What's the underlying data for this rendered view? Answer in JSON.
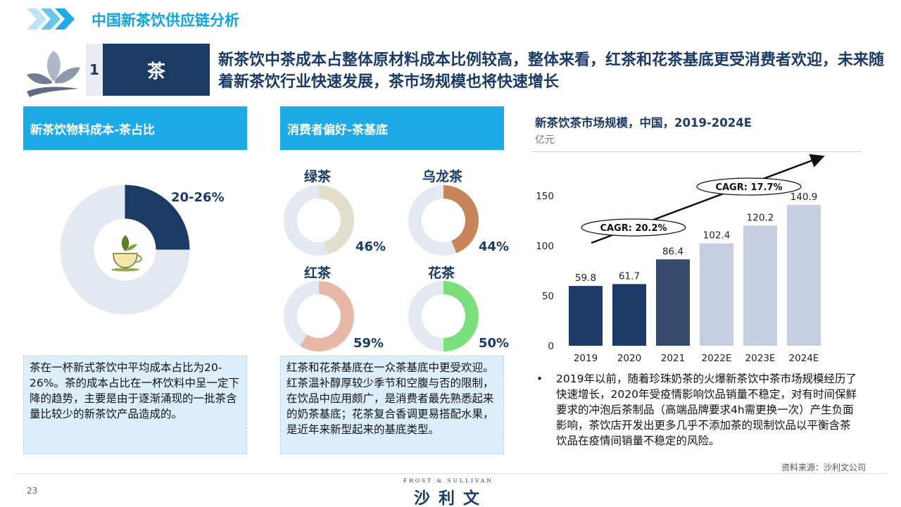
{
  "header": {
    "section_title": "中国新茶饮供应链分析",
    "number": "1",
    "title": "茶",
    "headline": "新茶饮中茶成本占整体原材料成本比例较高，整体来看，红茶和花茶基底更受消费者欢迎，未来随着新茶饮行业快速发展，茶市场规模也将快速增长"
  },
  "panel_cost": {
    "heading": "新茶饮物料成本-茶占比",
    "share_label": "20-26%",
    "share_value": 0.25,
    "colors": {
      "filled": "#1b3a66",
      "rest": "#e4e8f1"
    },
    "description": "茶在一杯新式茶饮中平均成本占比为20-26%。茶的成本占比在一杯饮料中呈一定下降的趋势，主要是由于逐渐涌现的一批茶含量比较少的新茶饮产品造成的。"
  },
  "panel_pref": {
    "heading": "消费者偏好-茶基底",
    "items": [
      {
        "name": "绿茶",
        "pct_label": "46%",
        "value": 0.46,
        "color": "#e2decc"
      },
      {
        "name": "乌龙茶",
        "pct_label": "44%",
        "value": 0.44,
        "color": "#c8845a"
      },
      {
        "name": "红茶",
        "pct_label": "59%",
        "value": 0.59,
        "color": "#e9b7a7"
      },
      {
        "name": "花茶",
        "pct_label": "50%",
        "value": 0.5,
        "color": "#7be07b"
      }
    ],
    "rest_color": "#e4e8f1",
    "description": "红茶和花茶基底在一众茶基底中更受欢迎。红茶温补醇厚较少季节和空腹与否的限制，在饮品中应用颇广，是消费者最先熟悉起来的奶茶基底；花茶复合香调更易搭配水果，是近年来新型起来的基底类型。"
  },
  "chart_data": {
    "type": "bar",
    "title": "新茶饮茶市场规模，中国，2019-2024E",
    "ylabel": "亿元",
    "categories": [
      "2019",
      "2020",
      "2021",
      "2022E",
      "2023E",
      "2024E"
    ],
    "values": [
      59.8,
      61.7,
      86.4,
      102.4,
      120.2,
      140.9
    ],
    "value_labels": [
      "59.8",
      "61.7",
      "86.4",
      "102.4",
      "120.2",
      "140.9"
    ],
    "bar_colors": [
      "#1b3a66",
      "#1b3a66",
      "#364a6b",
      "#c5cfe1",
      "#c5cfe1",
      "#c5cfe1"
    ],
    "ylim": [
      0,
      150
    ],
    "yticks": [
      0,
      50,
      100,
      150
    ],
    "ytick_labels": [
      "0",
      "50",
      "100",
      "150"
    ],
    "cagr": [
      {
        "label": "CAGR: 20.2%",
        "from": "2019",
        "to": "2021"
      },
      {
        "label": "CAGR: 17.7%",
        "from": "2021",
        "to": "2024E"
      }
    ],
    "grid": false
  },
  "chart_notes": {
    "bullet": "•",
    "text": "2019年以前，随着珍珠奶茶的火爆新茶饮中茶市场规模经历了快速增长，2020年受疫情影响饮品销量不稳定，对有时间保鲜要求的冲泡后茶制品（高端品牌要求4h需更换一次）产生负面影响，茶饮店开发出更多几乎不添加茶的现制饮品以平衡含茶饮品在疫情间销量不稳定的风险。",
    "source": "资料来源：沙利文公司"
  },
  "footer": {
    "page_number": "23",
    "brand_small": "FROST & SULLIVAN",
    "brand_main": "沙利文"
  }
}
